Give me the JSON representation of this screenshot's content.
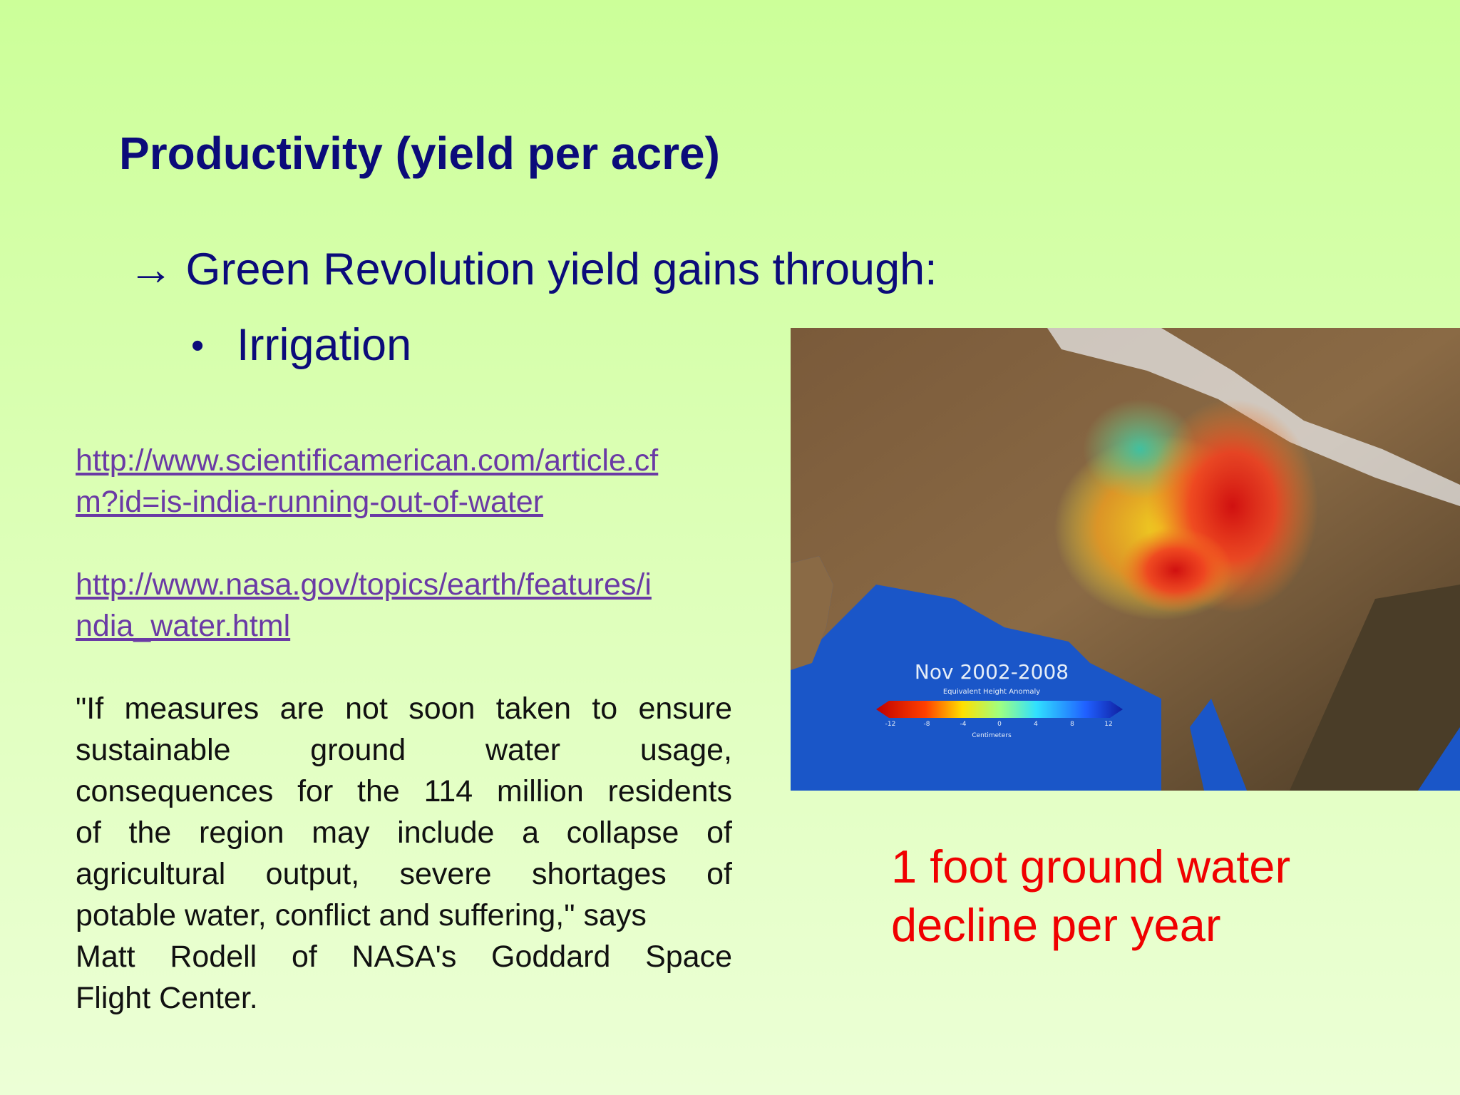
{
  "slide": {
    "title": "Productivity (yield per acre)",
    "heading": "→ Green Revolution yield gains through:",
    "bullet": "Irrigation",
    "links": [
      {
        "lines": [
          "http://www.scientificamerican.com/article.cf",
          "m?id=is-india-running-out-of-water"
        ]
      },
      {
        "lines": [
          "http://www.nasa.gov/topics/earth/features/i",
          "ndia_water.html"
        ]
      }
    ],
    "quote_lines": [
      "\"If measures are not soon taken to ensure",
      "sustainable ground water usage,",
      "consequences for the 114 million residents",
      "of the region may include a collapse of",
      "agricultural output, severe shortages of",
      "potable water, conflict and suffering,\" says",
      "Matt Rodell of NASA's Goddard Space",
      "Flight Center."
    ],
    "map": {
      "title": "Nov 2002-2008",
      "subtitle": "Equivalent Height Anomaly",
      "scale_ticks": [
        "-12",
        "-8",
        "-4",
        "0",
        "4",
        "8",
        "12"
      ],
      "unit": "Centimeters"
    },
    "caption_lines": [
      "1 foot ground water",
      "decline per year"
    ]
  }
}
